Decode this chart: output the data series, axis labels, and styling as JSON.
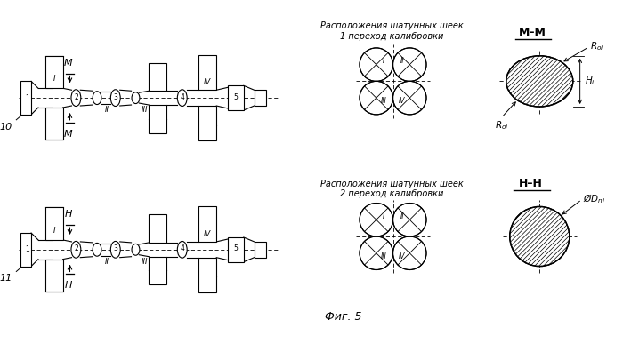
{
  "bg_color": "#ffffff",
  "line_color": "#000000",
  "text_label_top": "Расположения шатунных шеек\n1 переход калибровки",
  "text_label_bot": "Расположения шатунных шеек\n2 переход калибровки",
  "fig_label": "Фиг. 5",
  "item_10": "10",
  "item_11": "11",
  "top_section": "M",
  "bot_section": "H",
  "mm_label": "M–M",
  "hh_label": "H–H",
  "Roi_label": "R",
  "Hi_label": "H",
  "Dni_label": "ØD",
  "crank_nums": [
    "1",
    "2",
    "3",
    "4",
    "5"
  ],
  "roman": [
    "I",
    "II",
    "III",
    "IV"
  ]
}
